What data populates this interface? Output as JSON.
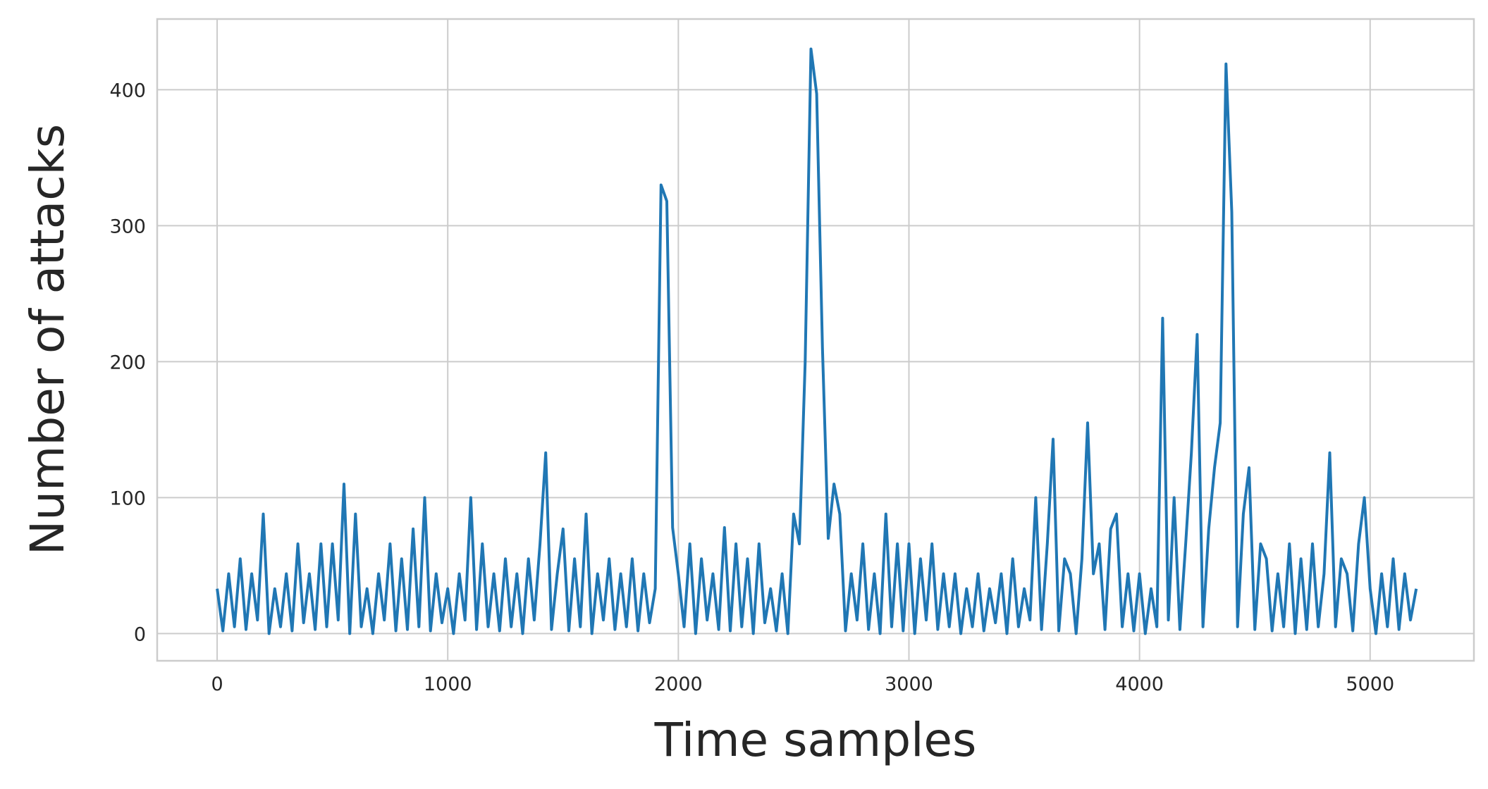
{
  "chart_data": {
    "type": "line",
    "xlabel": "Time samples",
    "ylabel": "Number of attacks",
    "x": [
      0,
      25,
      50,
      75,
      100,
      125,
      150,
      175,
      200,
      225,
      250,
      275,
      300,
      325,
      350,
      375,
      400,
      425,
      450,
      475,
      500,
      525,
      550,
      575,
      600,
      625,
      650,
      675,
      700,
      725,
      750,
      775,
      800,
      825,
      850,
      875,
      900,
      925,
      950,
      975,
      1000,
      1025,
      1050,
      1075,
      1100,
      1125,
      1150,
      1175,
      1200,
      1225,
      1250,
      1275,
      1300,
      1325,
      1350,
      1375,
      1400,
      1425,
      1450,
      1475,
      1500,
      1525,
      1550,
      1575,
      1600,
      1625,
      1650,
      1675,
      1700,
      1725,
      1750,
      1775,
      1800,
      1825,
      1850,
      1875,
      1900,
      1925,
      1950,
      1975,
      2000,
      2025,
      2050,
      2075,
      2100,
      2125,
      2150,
      2175,
      2200,
      2225,
      2250,
      2275,
      2300,
      2325,
      2350,
      2375,
      2400,
      2425,
      2450,
      2475,
      2500,
      2525,
      2550,
      2575,
      2600,
      2625,
      2650,
      2675,
      2700,
      2725,
      2750,
      2775,
      2800,
      2825,
      2850,
      2875,
      2900,
      2925,
      2950,
      2975,
      3000,
      3025,
      3050,
      3075,
      3100,
      3125,
      3150,
      3175,
      3200,
      3225,
      3250,
      3275,
      3300,
      3325,
      3350,
      3375,
      3400,
      3425,
      3450,
      3475,
      3500,
      3525,
      3550,
      3575,
      3600,
      3625,
      3650,
      3675,
      3700,
      3725,
      3750,
      3775,
      3800,
      3825,
      3850,
      3875,
      3900,
      3925,
      3950,
      3975,
      4000,
      4025,
      4050,
      4075,
      4100,
      4125,
      4150,
      4175,
      4200,
      4225,
      4250,
      4275,
      4300,
      4325,
      4350,
      4375,
      4400,
      4425,
      4450,
      4475,
      4500,
      4525,
      4550,
      4575,
      4600,
      4625,
      4650,
      4675,
      4700,
      4725,
      4750,
      4775,
      4800,
      4825,
      4850,
      4875,
      4900,
      4925,
      4950,
      4975,
      5000,
      5025,
      5050,
      5075,
      5100,
      5125,
      5150,
      5175,
      5200
    ],
    "series": [
      {
        "color": "#2077b4",
        "values": [
          33,
          2,
          44,
          5,
          55,
          3,
          44,
          10,
          88,
          0,
          33,
          5,
          44,
          2,
          66,
          8,
          44,
          3,
          66,
          5,
          66,
          10,
          110,
          0,
          88,
          5,
          33,
          0,
          44,
          10,
          66,
          2,
          55,
          3,
          77,
          5,
          100,
          2,
          44,
          8,
          33,
          0,
          44,
          10,
          100,
          3,
          66,
          5,
          44,
          2,
          55,
          5,
          44,
          0,
          55,
          10,
          66,
          133,
          3,
          44,
          77,
          2,
          55,
          5,
          88,
          0,
          44,
          10,
          55,
          3,
          44,
          5,
          55,
          2,
          44,
          8,
          33,
          330,
          318,
          78,
          44,
          5,
          66,
          0,
          55,
          10,
          44,
          3,
          78,
          2,
          66,
          5,
          55,
          0,
          66,
          8,
          33,
          2,
          44,
          0,
          88,
          66,
          200,
          430,
          397,
          210,
          70,
          110,
          88,
          2,
          44,
          10,
          66,
          3,
          44,
          0,
          88,
          5,
          66,
          2,
          66,
          0,
          55,
          10,
          66,
          3,
          44,
          5,
          44,
          0,
          33,
          5,
          44,
          2,
          33,
          8,
          44,
          0,
          55,
          5,
          33,
          10,
          100,
          3,
          66,
          143,
          2,
          55,
          44,
          0,
          55,
          155,
          44,
          66,
          3,
          77,
          88,
          5,
          44,
          2,
          44,
          0,
          33,
          5,
          232,
          10,
          100,
          3,
          66,
          133,
          220,
          5,
          77,
          122,
          155,
          419,
          310,
          5,
          88,
          122,
          3,
          66,
          55,
          2,
          44,
          5,
          66,
          0,
          55,
          3,
          66,
          5,
          44,
          133,
          5,
          55,
          44,
          2,
          66,
          100,
          33,
          0,
          44,
          5,
          55,
          3,
          44,
          10,
          33
        ]
      }
    ],
    "xlim": [
      -260,
      5450
    ],
    "ylim": [
      -20,
      452
    ],
    "xticks": [
      0,
      1000,
      2000,
      3000,
      4000,
      5000
    ],
    "yticks": [
      0,
      100,
      200,
      300,
      400
    ],
    "grid": true
  }
}
